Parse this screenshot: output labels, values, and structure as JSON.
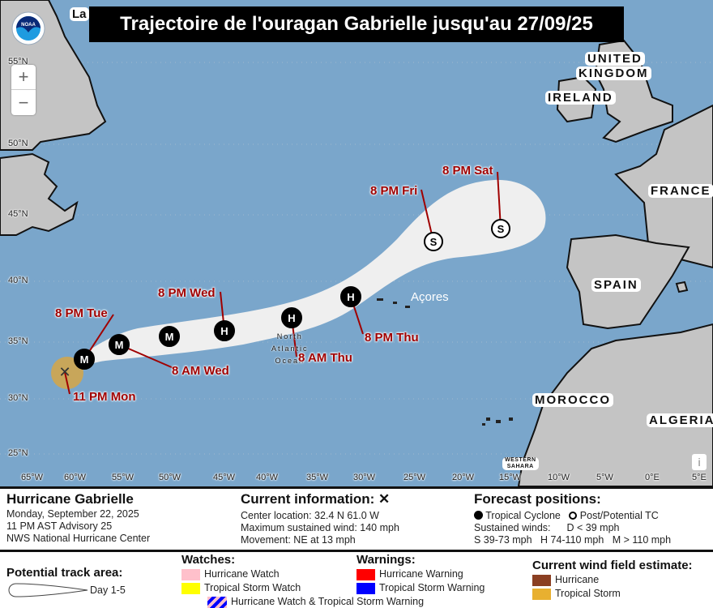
{
  "title": "Trajectoire de l'ouragan Gabrielle jusqu'au 27/09/25",
  "logo_text": "NOAA",
  "zoom": {
    "in": "+",
    "out": "−"
  },
  "info_label": "i",
  "colors": {
    "ocean": "#7aa6cb",
    "land": "#c4c4c4",
    "cone": "#efefef",
    "track_label": "#a00000",
    "wind_ts": "#c8a65a"
  },
  "countries": {
    "la": "La",
    "uk1": "UNITED",
    "uk2": "KINGDOM",
    "ireland": "IRELAND",
    "france": "FRANCE",
    "spain": "SPAIN",
    "morocco": "MOROCCO",
    "algeria": "ALGERIA",
    "ws1": "WESTERN",
    "ws2": "SAHARA"
  },
  "place_labels": {
    "acores": "Açores",
    "ocean1": "North",
    "ocean2": "Atlantic",
    "ocean3": "Ocean"
  },
  "lon_labels": [
    "65°W",
    "60°W",
    "55°W",
    "50°W",
    "45°W",
    "40°W",
    "35°W",
    "30°W",
    "25°W",
    "20°W",
    "15°W",
    "10°W",
    "5°W",
    "0°E",
    "5°E"
  ],
  "lat_labels": [
    "55°N",
    "50°N",
    "45°N",
    "40°N",
    "35°N",
    "30°N",
    "25°N"
  ],
  "track": [
    {
      "symbol": "X",
      "label": "11 PM Mon",
      "type": "current"
    },
    {
      "symbol": "M",
      "label": "8 PM Tue",
      "type": "tc"
    },
    {
      "symbol": "M",
      "label": "8 AM Wed",
      "type": "tc"
    },
    {
      "symbol": "M",
      "label": "",
      "type": "tc"
    },
    {
      "symbol": "H",
      "label": "8 PM Wed",
      "type": "tc"
    },
    {
      "symbol": "H",
      "label": "8 AM Thu",
      "type": "tc"
    },
    {
      "symbol": "H",
      "label": "8 PM Thu",
      "type": "tc"
    },
    {
      "symbol": "S",
      "label": "8 PM Fri",
      "type": "post"
    },
    {
      "symbol": "S",
      "label": "8 PM Sat",
      "type": "post"
    }
  ],
  "legend": {
    "storm_name": "Hurricane Gabrielle",
    "date": "Monday, September 22, 2025",
    "advisory": "11 PM AST Advisory 25",
    "center": "NWS National Hurricane Center",
    "current_title": "Current information:",
    "current_icon": "✕",
    "location": "Center location: 32.4 N 61.0 W",
    "max_wind": "Maximum sustained wind: 140 mph",
    "movement": "Movement: NE at 13 mph",
    "forecast_title": "Forecast positions:",
    "tc": "Tropical Cyclone",
    "post": "Post/Potential TC",
    "sustained": "Sustained winds:",
    "d": "D < 39 mph",
    "smh": "S 39-73 mph   H 74-110 mph   M > 110 mph",
    "track_area_title": "Potential track area:",
    "day": "Day 1-5",
    "watches_title": "Watches:",
    "hw": "Hurricane Watch",
    "hw_color": "#ffc0cb",
    "tsw": "Tropical Storm Watch",
    "tsw_color": "#ffff00",
    "combo": "Hurricane Watch & Tropical Storm Warning",
    "warnings_title": "Warnings:",
    "hwarn": "Hurricane Warning",
    "hwarn_color": "#ff0000",
    "tswarn": "Tropical Storm Warning",
    "tswarn_color": "#0000ff",
    "wind_title": "Current wind field estimate:",
    "wh": "Hurricane",
    "wh_color": "#8b3f22",
    "wts": "Tropical Storm",
    "wts_color": "#e8b030"
  }
}
